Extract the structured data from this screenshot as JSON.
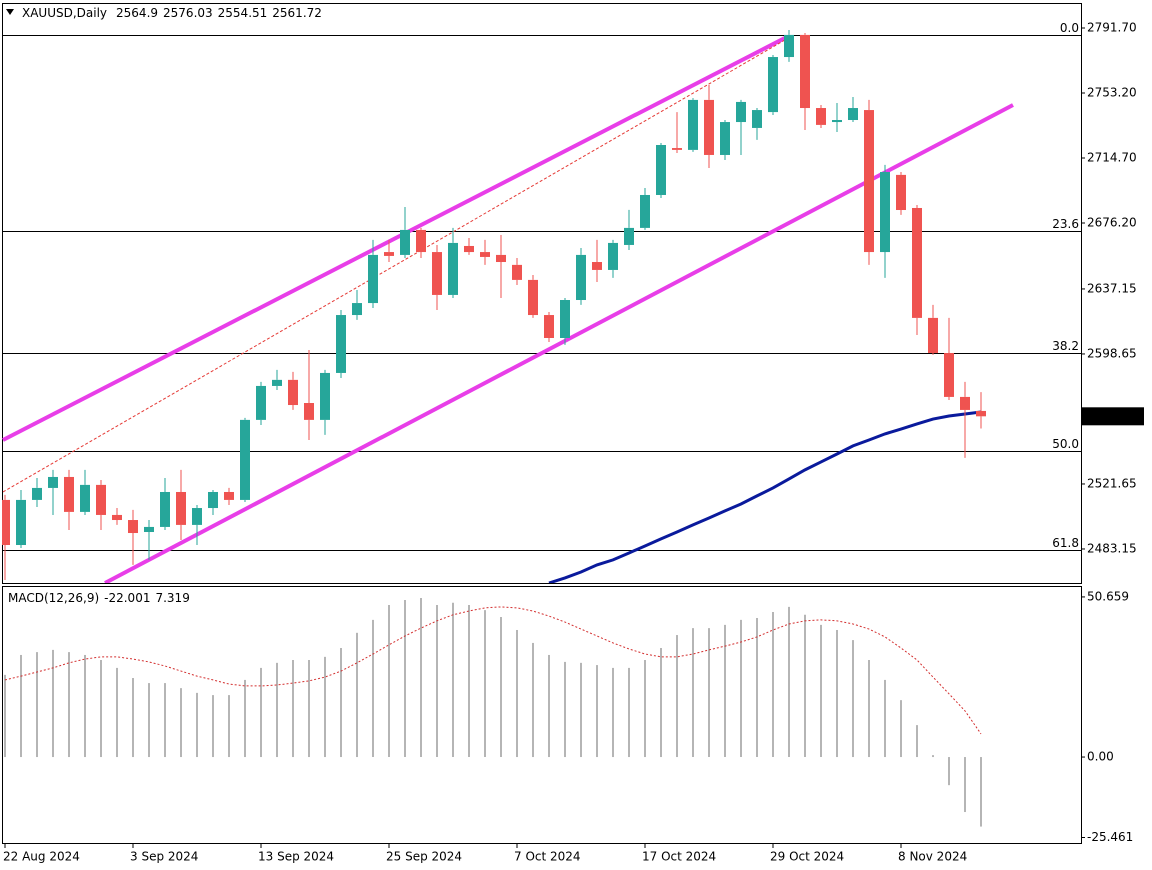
{
  "chart_data": {
    "type": "candlestick",
    "symbol": "XAUUSD,Daily",
    "categories": [
      "22 Aug 2024",
      null,
      null,
      null,
      null,
      null,
      null,
      null,
      "3 Sep 2024",
      null,
      null,
      null,
      null,
      null,
      null,
      null,
      "13 Sep 2024",
      null,
      null,
      null,
      null,
      null,
      null,
      null,
      "25 Sep 2024",
      null,
      null,
      null,
      null,
      null,
      null,
      null,
      "7 Oct 2024",
      null,
      null,
      null,
      null,
      null,
      null,
      null,
      "17 Oct 2024",
      null,
      null,
      null,
      null,
      null,
      null,
      null,
      "29 Oct 2024",
      null,
      null,
      null,
      null,
      null,
      null,
      null,
      "8 Nov 2024",
      null,
      null,
      null,
      null,
      null
    ],
    "open": [
      2512.2,
      2485.5,
      2512.2,
      2519.3,
      2525.8,
      2505.1,
      2521.1,
      2503.3,
      2500.3,
      2493.2,
      2496.2,
      2516.9,
      2497.4,
      2507.4,
      2516.9,
      2512.2,
      2559.6,
      2579.7,
      2583.3,
      2569.6,
      2559.6,
      2587.4,
      2621.7,
      2628.8,
      2659.0,
      2657.3,
      2672.1,
      2659.0,
      2633.6,
      2662.6,
      2659.0,
      2657.3,
      2651.4,
      2642.5,
      2621.7,
      2608.1,
      2630.6,
      2653.1,
      2648.4,
      2663.2,
      2673.3,
      2692.8,
      2720.6,
      2719.5,
      2749.1,
      2716.5,
      2736.0,
      2732.5,
      2741.9,
      2774.5,
      2787.6,
      2744.3,
      2736.0,
      2737.2,
      2743.1,
      2659.0,
      2704.7,
      2685.1,
      2620.0,
      2599.2,
      2573.2,
      2564.9
    ],
    "high": [
      2515.2,
      2518.1,
      2525.2,
      2530.0,
      2530.0,
      2530.0,
      2524.0,
      2507.4,
      2506.3,
      2500.3,
      2525.2,
      2530.0,
      2509.2,
      2518.1,
      2519.3,
      2560.8,
      2582.1,
      2589.2,
      2588.0,
      2601.0,
      2589.2,
      2624.7,
      2636.5,
      2666.2,
      2666.2,
      2685.7,
      2673.3,
      2663.2,
      2673.3,
      2667.3,
      2666.2,
      2669.1,
      2655.5,
      2645.4,
      2623.5,
      2631.8,
      2661.4,
      2666.2,
      2666.2,
      2684.0,
      2696.9,
      2723.6,
      2741.9,
      2750.2,
      2757.9,
      2737.2,
      2749.1,
      2744.3,
      2775.7,
      2790.5,
      2788.7,
      2746.1,
      2747.3,
      2750.8,
      2749.1,
      2710.6,
      2706.4,
      2686.9,
      2627.7,
      2620.0,
      2582.1,
      2576.03
    ],
    "low": [
      2464.8,
      2483.7,
      2508.0,
      2503.3,
      2494.4,
      2503.3,
      2494.4,
      2497.4,
      2473.7,
      2476.7,
      2494.4,
      2488.5,
      2485.5,
      2503.3,
      2509.2,
      2511.0,
      2556.6,
      2577.3,
      2565.5,
      2547.7,
      2550.7,
      2584.4,
      2618.8,
      2625.9,
      2653.1,
      2655.5,
      2655.5,
      2624.7,
      2631.8,
      2657.3,
      2651.4,
      2631.8,
      2639.5,
      2620.0,
      2605.7,
      2604.0,
      2627.7,
      2641.3,
      2643.7,
      2660.2,
      2672.1,
      2691.0,
      2717.7,
      2718.3,
      2708.8,
      2713.5,
      2716.5,
      2725.4,
      2740.2,
      2771.6,
      2731.3,
      2732.5,
      2730.1,
      2736.0,
      2651.4,
      2643.7,
      2681.0,
      2609.9,
      2598.1,
      2571.4,
      2537.1,
      2554.51
    ],
    "close": [
      2485.5,
      2512.2,
      2519.3,
      2525.8,
      2505.1,
      2521.1,
      2503.3,
      2500.3,
      2492.6,
      2496.2,
      2516.9,
      2497.4,
      2507.4,
      2516.9,
      2512.2,
      2559.6,
      2579.7,
      2583.3,
      2568.4,
      2559.6,
      2587.4,
      2621.7,
      2628.8,
      2657.3,
      2656.7,
      2672.1,
      2659.0,
      2633.6,
      2664.4,
      2659.0,
      2656.1,
      2653.1,
      2642.5,
      2621.7,
      2608.1,
      2630.6,
      2657.3,
      2648.4,
      2664.4,
      2673.3,
      2692.8,
      2722.4,
      2719.5,
      2749.1,
      2716.5,
      2736.0,
      2747.9,
      2743.1,
      2774.5,
      2787.6,
      2744.3,
      2734.3,
      2737.2,
      2744.3,
      2659.0,
      2706.4,
      2683.9,
      2620.0,
      2599.2,
      2573.2,
      2565.5,
      2561.72
    ],
    "up_color": "#26a69a",
    "down_color": "#ef5350",
    "ylim": [
      2463.0,
      2806.5
    ],
    "yticks": [
      {
        "value": 2791.7,
        "label": "2791.70"
      },
      {
        "value": 2753.2,
        "label": "2753.20"
      },
      {
        "value": 2714.7,
        "label": "2714.70"
      },
      {
        "value": 2676.2,
        "label": "2676.20"
      },
      2637.15,
      2598.65,
      2521.65,
      2483.15
    ],
    "fib_levels": [
      {
        "label": "0.0",
        "price": 2787.6
      },
      {
        "label": "23.6",
        "price": 2671.5
      },
      {
        "label": "38.2",
        "price": 2599.3
      },
      {
        "label": "50.0",
        "price": 2541.2
      },
      {
        "label": "61.8",
        "price": 2482.6
      }
    ],
    "fib_color": "#1a237e",
    "trendlines": [
      {
        "x": [
          -0.125,
          48.75
        ],
        "y": [
          2547.7,
          2785.8
        ],
        "color": "#e83ee8",
        "width": 4,
        "dashed": false
      },
      {
        "x": [
          6.25,
          63
        ],
        "y": [
          2463.0,
          2746.1
        ],
        "color": "#e83ee8",
        "width": 4,
        "dashed": false
      },
      {
        "x": [
          -0.125,
          48.75
        ],
        "y": [
          2516.9,
          2784.6
        ],
        "color": "#e53935",
        "width": 1,
        "dashed": true
      }
    ],
    "ma": {
      "color": "#0a1a9c",
      "values": [
        null,
        null,
        null,
        null,
        null,
        null,
        null,
        null,
        null,
        null,
        null,
        null,
        null,
        null,
        null,
        null,
        null,
        null,
        null,
        null,
        null,
        null,
        null,
        null,
        null,
        null,
        null,
        null,
        null,
        null,
        null,
        null,
        null,
        null,
        2463.0,
        2466.0,
        2469.5,
        2473.7,
        2476.7,
        2480.8,
        2484.9,
        2489.1,
        2493.2,
        2497.4,
        2501.5,
        2505.7,
        2509.8,
        2514.6,
        2519.3,
        2524.6,
        2530.0,
        2534.7,
        2539.4,
        2544.2,
        2547.7,
        2551.3,
        2554.2,
        2557.2,
        2560.1,
        2561.9,
        2563.1,
        2564.3
      ]
    },
    "macd": {
      "title": "MACD(12,26,9)",
      "histogram": [
        26.0,
        32.3,
        33.2,
        33.9,
        33.2,
        32.3,
        30.7,
        28.2,
        25.0,
        23.4,
        23.4,
        21.8,
        20.3,
        19.6,
        19.6,
        24.4,
        28.2,
        29.8,
        30.7,
        30.7,
        31.7,
        34.5,
        39.3,
        43.4,
        48.1,
        49.7,
        50.3,
        48.1,
        48.8,
        48.1,
        46.5,
        44.3,
        40.2,
        36.1,
        32.3,
        30.1,
        29.8,
        29.1,
        28.2,
        28.2,
        30.7,
        34.5,
        38.6,
        40.8,
        40.8,
        41.8,
        43.4,
        44.0,
        45.9,
        47.5,
        45.0,
        41.8,
        40.2,
        37.0,
        30.7,
        24.4,
        18.0,
        10.1,
        0.6,
        -8.9,
        -17.4,
        -22.001
      ],
      "signal": [
        24.4,
        25.6,
        26.9,
        28.2,
        29.8,
        31.0,
        31.7,
        31.7,
        31.0,
        30.1,
        28.8,
        27.2,
        25.6,
        24.4,
        23.1,
        22.5,
        22.5,
        22.8,
        23.4,
        24.1,
        25.3,
        27.2,
        29.8,
        32.6,
        35.5,
        38.3,
        40.8,
        43.1,
        45.0,
        46.2,
        47.2,
        47.5,
        47.2,
        46.2,
        44.6,
        42.7,
        40.5,
        38.3,
        36.1,
        34.2,
        32.6,
        31.7,
        31.7,
        32.6,
        33.9,
        35.1,
        36.4,
        38.0,
        40.2,
        42.1,
        43.1,
        43.4,
        43.1,
        42.1,
        40.5,
        38.0,
        34.5,
        30.7,
        25.3,
        20.0,
        14.6,
        7.319
      ],
      "hist_color": "#b5b5b5",
      "signal_color": "#d32f2f",
      "ylim": [
        -27.2,
        53.8
      ],
      "yticks": [
        50.659,
        {
          "value": 0,
          "label": "0.00"
        },
        -25.461
      ]
    }
  }
}
